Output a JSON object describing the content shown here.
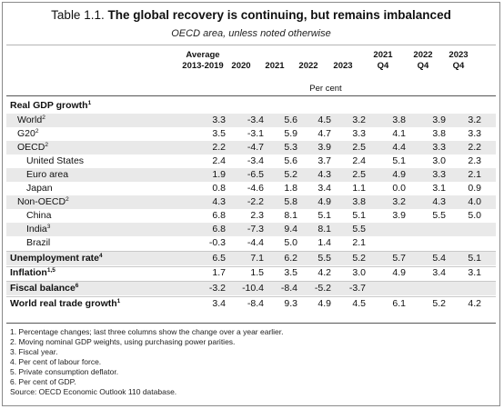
{
  "table": {
    "number": "Table 1.1.",
    "title": "The global recovery is continuing, but remains imbalanced",
    "subtitle": "OECD area, unless noted otherwise",
    "unit": "Per cent",
    "columns": [
      {
        "line1": "Average",
        "line2": "2013-2019"
      },
      {
        "line1": "",
        "line2": "2020"
      },
      {
        "line1": "",
        "line2": "2021"
      },
      {
        "line1": "",
        "line2": "2022"
      },
      {
        "line1": "",
        "line2": "2023"
      },
      {
        "line1": "2021",
        "line2": "Q4"
      },
      {
        "line1": "2022",
        "line2": "Q4"
      },
      {
        "line1": "2023",
        "line2": "Q4"
      }
    ],
    "rows": [
      {
        "label": "Real GDP growth",
        "sup": "1",
        "bold": true,
        "indent": 0,
        "values": [
          "",
          "",
          "",
          "",
          "",
          "",
          "",
          ""
        ]
      },
      {
        "label": "World",
        "sup": "2",
        "bold": false,
        "indent": 1,
        "values": [
          "3.3",
          "-3.4",
          "5.6",
          "4.5",
          "3.2",
          "3.8",
          "3.9",
          "3.2"
        ]
      },
      {
        "label": "G20",
        "sup": "2",
        "bold": false,
        "indent": 1,
        "values": [
          "3.5",
          "-3.1",
          "5.9",
          "4.7",
          "3.3",
          "4.1",
          "3.8",
          "3.3"
        ]
      },
      {
        "label": "OECD",
        "sup": "2",
        "bold": false,
        "indent": 1,
        "values": [
          "2.2",
          "-4.7",
          "5.3",
          "3.9",
          "2.5",
          "4.4",
          "3.3",
          "2.2"
        ]
      },
      {
        "label": "United States",
        "sup": "",
        "bold": false,
        "indent": 2,
        "values": [
          "2.4",
          "-3.4",
          "5.6",
          "3.7",
          "2.4",
          "5.1",
          "3.0",
          "2.3"
        ]
      },
      {
        "label": "Euro area",
        "sup": "",
        "bold": false,
        "indent": 2,
        "values": [
          "1.9",
          "-6.5",
          "5.2",
          "4.3",
          "2.5",
          "4.9",
          "3.3",
          "2.1"
        ]
      },
      {
        "label": "Japan",
        "sup": "",
        "bold": false,
        "indent": 2,
        "values": [
          "0.8",
          "-4.6",
          "1.8",
          "3.4",
          "1.1",
          "0.0",
          "3.1",
          "0.9"
        ]
      },
      {
        "label": "Non-OECD",
        "sup": "2",
        "bold": false,
        "indent": 1,
        "values": [
          "4.3",
          "-2.2",
          "5.8",
          "4.9",
          "3.8",
          "3.2",
          "4.3",
          "4.0"
        ]
      },
      {
        "label": "China",
        "sup": "",
        "bold": false,
        "indent": 2,
        "values": [
          "6.8",
          "2.3",
          "8.1",
          "5.1",
          "5.1",
          "3.9",
          "5.5",
          "5.0"
        ]
      },
      {
        "label": "India",
        "sup": "3",
        "bold": false,
        "indent": 2,
        "values": [
          "6.8",
          "-7.3",
          "9.4",
          "8.1",
          "5.5",
          "",
          "",
          ""
        ]
      },
      {
        "label": "Brazil",
        "sup": "",
        "bold": false,
        "indent": 2,
        "values": [
          "-0.3",
          "-4.4",
          "5.0",
          "1.4",
          "2.1",
          "",
          "",
          ""
        ]
      },
      {
        "label": "Unemployment rate",
        "sup": "4",
        "bold": true,
        "indent": 0,
        "values": [
          "6.5",
          "7.1",
          "6.2",
          "5.5",
          "5.2",
          "5.7",
          "5.4",
          "5.1"
        ]
      },
      {
        "label": "Inflation",
        "sup": "1,5",
        "bold": true,
        "indent": 0,
        "values": [
          "1.7",
          "1.5",
          "3.5",
          "4.2",
          "3.0",
          "4.9",
          "3.4",
          "3.1"
        ]
      },
      {
        "label": "Fiscal balance",
        "sup": "6",
        "bold": true,
        "indent": 0,
        "values": [
          "-3.2",
          "-10.4",
          "-8.4",
          "-5.2",
          "-3.7",
          "",
          "",
          ""
        ]
      },
      {
        "label": "World real trade growth",
        "sup": "1",
        "bold": true,
        "indent": 0,
        "values": [
          "3.4",
          "-8.4",
          "9.3",
          "4.9",
          "4.5",
          "6.1",
          "5.2",
          "4.2"
        ]
      }
    ],
    "notes": [
      "1. Percentage changes; last three columns show the change over a year earlier.",
      "2. Moving nominal GDP weights, using purchasing power parities.",
      "3. Fiscal year.",
      "4. Per cent of labour force.",
      "5. Private consumption deflator.",
      "6. Per cent of GDP.",
      "Source: OECD Economic Outlook 110 database."
    ]
  }
}
